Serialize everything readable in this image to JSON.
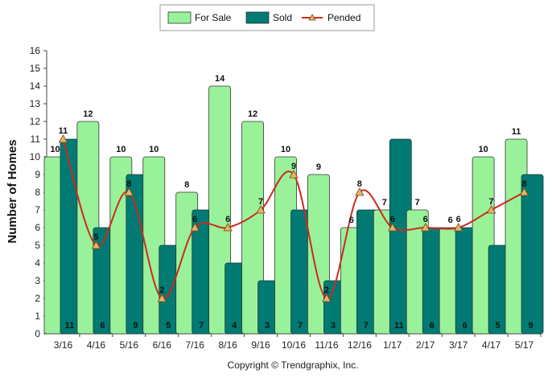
{
  "chart_data": {
    "type": "bar",
    "ylabel": "Number of Homes",
    "xlabel": "",
    "ylim": [
      0,
      16
    ],
    "y_ticks": [
      0,
      1,
      2,
      3,
      4,
      5,
      6,
      7,
      8,
      9,
      10,
      11,
      12,
      13,
      14,
      15,
      16
    ],
    "grid": false,
    "legend_position": "top-center",
    "categories": [
      "3/16",
      "4/16",
      "5/16",
      "6/16",
      "7/16",
      "8/16",
      "9/16",
      "10/16",
      "11/16",
      "12/16",
      "1/17",
      "2/17",
      "3/17",
      "4/17",
      "5/17"
    ],
    "series": [
      {
        "name": "For Sale",
        "type": "bar",
        "color": "#99f29a",
        "values": [
          10,
          12,
          10,
          10,
          8,
          14,
          12,
          10,
          9,
          6,
          7,
          7,
          6,
          10,
          11
        ]
      },
      {
        "name": "Sold",
        "type": "bar",
        "color": "#007a72",
        "values": [
          11,
          6,
          9,
          5,
          7,
          4,
          3,
          7,
          3,
          7,
          11,
          6,
          6,
          5,
          9
        ]
      },
      {
        "name": "Pended",
        "type": "line",
        "color": "#cc2a1f",
        "marker_color": "#e8b36a",
        "values": [
          11,
          5,
          8,
          2,
          6,
          6,
          7,
          9,
          2,
          8,
          6,
          6,
          6,
          7,
          8
        ]
      }
    ]
  },
  "footer": {
    "copyright": "Copyright © Trendgraphix, Inc."
  }
}
